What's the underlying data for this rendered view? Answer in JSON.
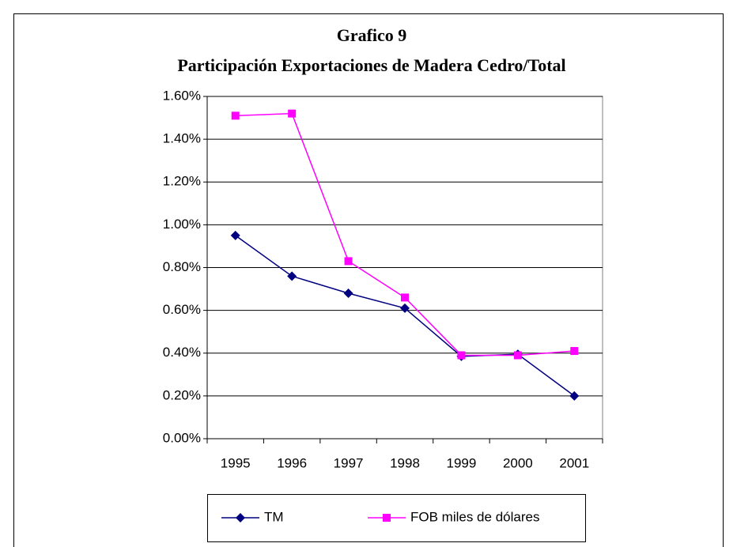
{
  "chart_data": {
    "type": "line",
    "title": "Grafico 9",
    "subtitle": "Participación Exportaciones de Madera Cedro/Total",
    "categories": [
      "1995",
      "1996",
      "1997",
      "1998",
      "1999",
      "2000",
      "2001"
    ],
    "series": [
      {
        "name": "TM",
        "color": "#000080",
        "marker": "diamond",
        "values": [
          0.95,
          0.76,
          0.68,
          0.61,
          0.385,
          0.395,
          0.2
        ]
      },
      {
        "name": "FOB miles de dólares",
        "color": "#ff00ff",
        "marker": "square",
        "values": [
          1.51,
          1.52,
          0.83,
          0.66,
          0.39,
          0.39,
          0.41
        ]
      }
    ],
    "ylim": [
      0,
      1.6
    ],
    "yticks": [
      {
        "value": 0,
        "label": "0.00%"
      },
      {
        "value": 0.2,
        "label": "0.20%"
      },
      {
        "value": 0.4,
        "label": "0.40%"
      },
      {
        "value": 0.6,
        "label": "0.60%"
      },
      {
        "value": 0.8,
        "label": "0.80%"
      },
      {
        "value": 1.0,
        "label": "1.00%"
      },
      {
        "value": 1.2,
        "label": "1.20%"
      },
      {
        "value": 1.4,
        "label": "1.40%"
      },
      {
        "value": 1.6,
        "label": "1.60%"
      }
    ],
    "grid": true,
    "legend": "bottom"
  }
}
